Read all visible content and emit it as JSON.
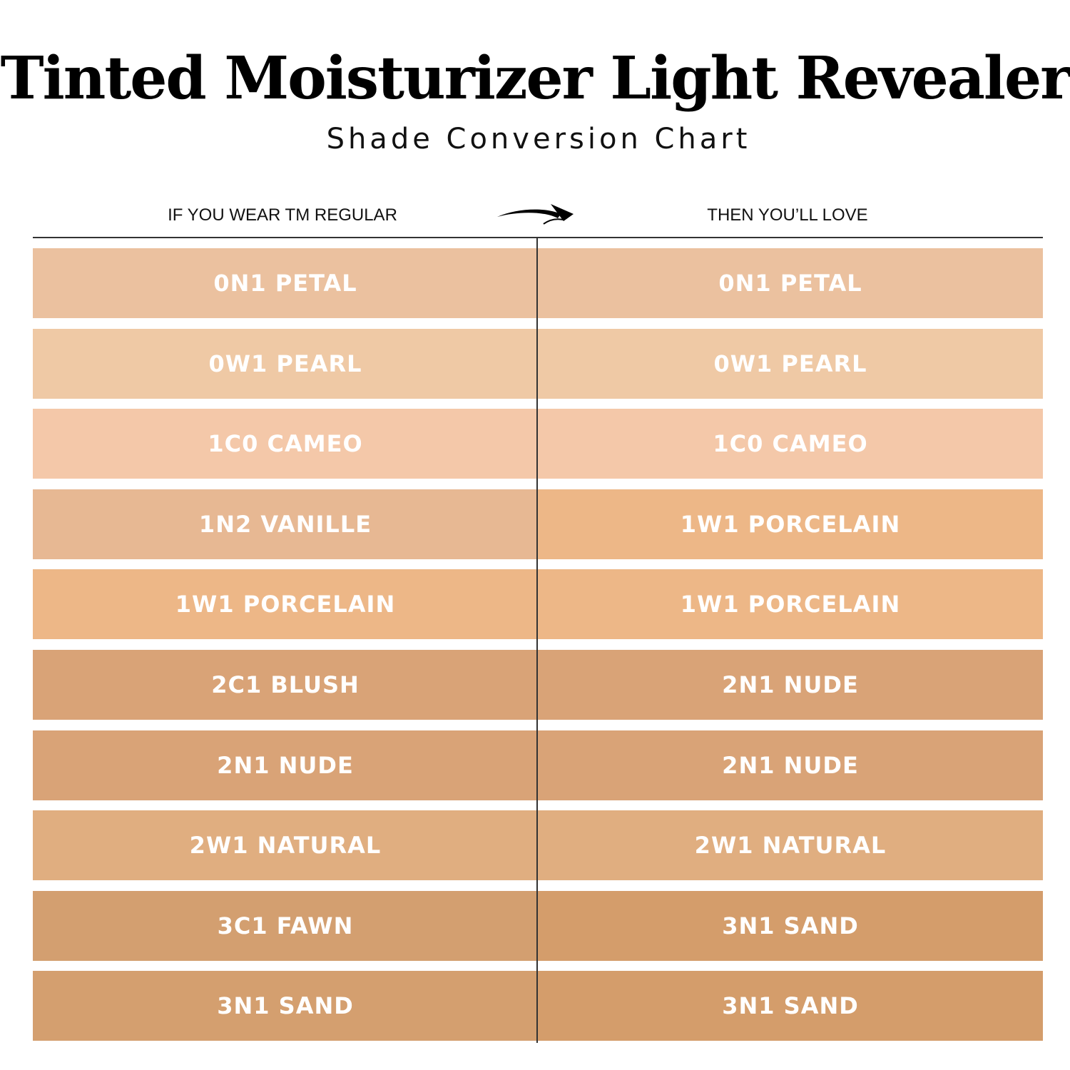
{
  "title": "Tinted Moisturizer Light Revealer",
  "subtitle": "Shade Conversion Chart",
  "headers": {
    "left": "IF YOU WEAR TM REGULAR",
    "right": "THEN YOU’LL LOVE",
    "arrow_icon": "curved-arrow-right"
  },
  "rows": [
    {
      "from": "0N1 PETAL",
      "to": "0N1 PETAL",
      "from_color": "#ebc19f",
      "to_color": "#ebc19f"
    },
    {
      "from": "0W1 PEARL",
      "to": "0W1 PEARL",
      "from_color": "#efc9a5",
      "to_color": "#efc9a5"
    },
    {
      "from": "1C0 CAMEO",
      "to": "1C0 CAMEO",
      "from_color": "#f4c8a9",
      "to_color": "#f4c8a9"
    },
    {
      "from": "1N2 VANILLE",
      "to": "1W1 PORCELAIN",
      "from_color": "#e7b893",
      "to_color": "#edb787"
    },
    {
      "from": "1W1 PORCELAIN",
      "to": "1W1 PORCELAIN",
      "from_color": "#edb787",
      "to_color": "#edb787"
    },
    {
      "from": "2C1 BLUSH",
      "to": "2N1 NUDE",
      "from_color": "#d9a377",
      "to_color": "#d9a377"
    },
    {
      "from": "2N1 NUDE",
      "to": "2N1 NUDE",
      "from_color": "#d9a377",
      "to_color": "#d9a377"
    },
    {
      "from": "2W1 NATURAL",
      "to": "2W1 NATURAL",
      "from_color": "#e0ae80",
      "to_color": "#e0ae80"
    },
    {
      "from": "3C1 FAWN",
      "to": "3N1 SAND",
      "from_color": "#d39f70",
      "to_color": "#d49d6b"
    },
    {
      "from": "3N1 SAND",
      "to": "3N1 SAND",
      "from_color": "#d49f6f",
      "to_color": "#d49d6b"
    }
  ]
}
